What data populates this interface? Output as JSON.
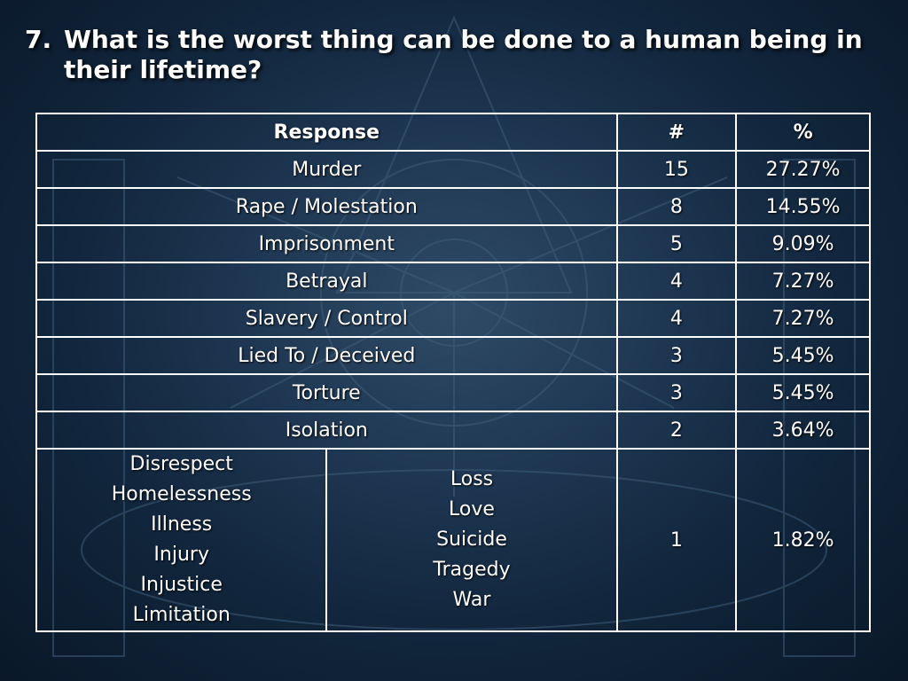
{
  "slide": {
    "number": "7.",
    "question": "What is the worst thing can be done to a human being in their lifetime?"
  },
  "table": {
    "headers": [
      "Response",
      "#",
      "%"
    ],
    "rows": [
      {
        "response": "Murder",
        "count": "15",
        "percent": "27.27%"
      },
      {
        "response": "Rape / Molestation",
        "count": "8",
        "percent": "14.55%"
      },
      {
        "response": "Imprisonment",
        "count": "5",
        "percent": "9.09%"
      },
      {
        "response": "Betrayal",
        "count": "4",
        "percent": "7.27%"
      },
      {
        "response": "Slavery / Control",
        "count": "4",
        "percent": "7.27%"
      },
      {
        "response": "Lied To / Deceived",
        "count": "3",
        "percent": "5.45%"
      },
      {
        "response": "Torture",
        "count": "3",
        "percent": "5.45%"
      },
      {
        "response": "Isolation",
        "count": "2",
        "percent": "3.64%"
      }
    ],
    "last_row": {
      "group_a": [
        "Disrespect",
        "Homelessness",
        "Illness",
        "Injury",
        "Injustice",
        "Limitation"
      ],
      "group_b": [
        "Loss",
        "Love",
        "Suicide",
        "Tragedy",
        "War"
      ],
      "count": "1",
      "percent": "1.82%"
    }
  },
  "colors": {
    "background": "#10243a",
    "text": "#ffffff",
    "border": "#ffffff"
  }
}
